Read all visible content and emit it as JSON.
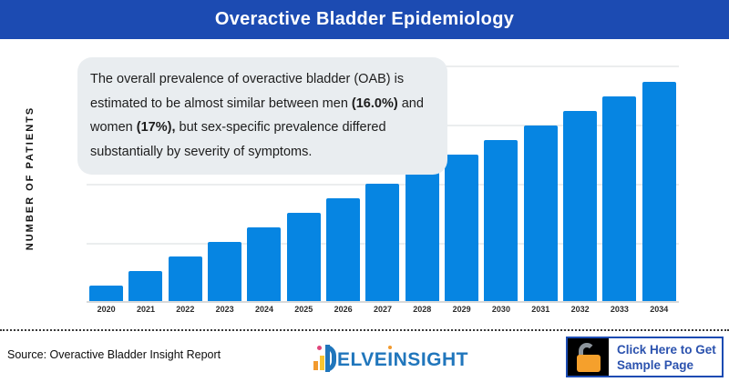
{
  "header": {
    "title": "Overactive Bladder Epidemiology"
  },
  "colors": {
    "header_bg": "#1c4bb2",
    "bar": "#0685e2",
    "annotation_bg": "#e9edf0",
    "gridline": "#ebedee",
    "axis_line": "#d7d9da",
    "logo_blue": "#2076bc",
    "cta_border": "#1c4bb2",
    "cta_text": "#2b52ae",
    "lock_orange": "#f5a02c"
  },
  "annotation": {
    "segments": [
      {
        "text": "The overall prevalence of overactive bladder (OAB) is estimated to be almost similar between men ",
        "bold": false
      },
      {
        "text": "(16.0%)",
        "bold": true
      },
      {
        "text": " and women ",
        "bold": false
      },
      {
        "text": "(17%),",
        "bold": true
      },
      {
        "text": " but sex-specific prevalence differed substantially by severity of symptoms.",
        "bold": false
      }
    ]
  },
  "chart_data": {
    "type": "bar",
    "title": "Overactive Bladder Epidemiology",
    "xlabel": "",
    "ylabel": "NUMBER OF PATIENTS",
    "categories": [
      "2020",
      "2021",
      "2022",
      "2023",
      "2024",
      "2025",
      "2026",
      "2027",
      "2028",
      "2029",
      "2030",
      "2031",
      "2032",
      "2033",
      "2034"
    ],
    "values_relative_pct_of_max": [
      7.1,
      13.7,
      20.3,
      27.0,
      33.6,
      40.2,
      46.9,
      53.5,
      60.2,
      66.8,
      73.4,
      80.1,
      86.7,
      93.4,
      100
    ],
    "y_tick_labels": [],
    "notes": "Y axis has no numeric tick labels; bar heights grow almost linearly from 2020 to 2034. Values captured as percent of tallest (2034) bar.",
    "legend": "none",
    "grid": "horizontal",
    "bar_color": "#0685e2"
  },
  "footer": {
    "source": "Source: Overactive Bladder Insight Report",
    "logo": {
      "brand": "DelveInsight",
      "text_pre": "ELVE",
      "text_accent": "I",
      "text_post": "NSIGHT"
    },
    "cta": {
      "line1": "Click Here to Get",
      "line2": "Sample Page",
      "icon": "open-padlock-icon"
    }
  }
}
